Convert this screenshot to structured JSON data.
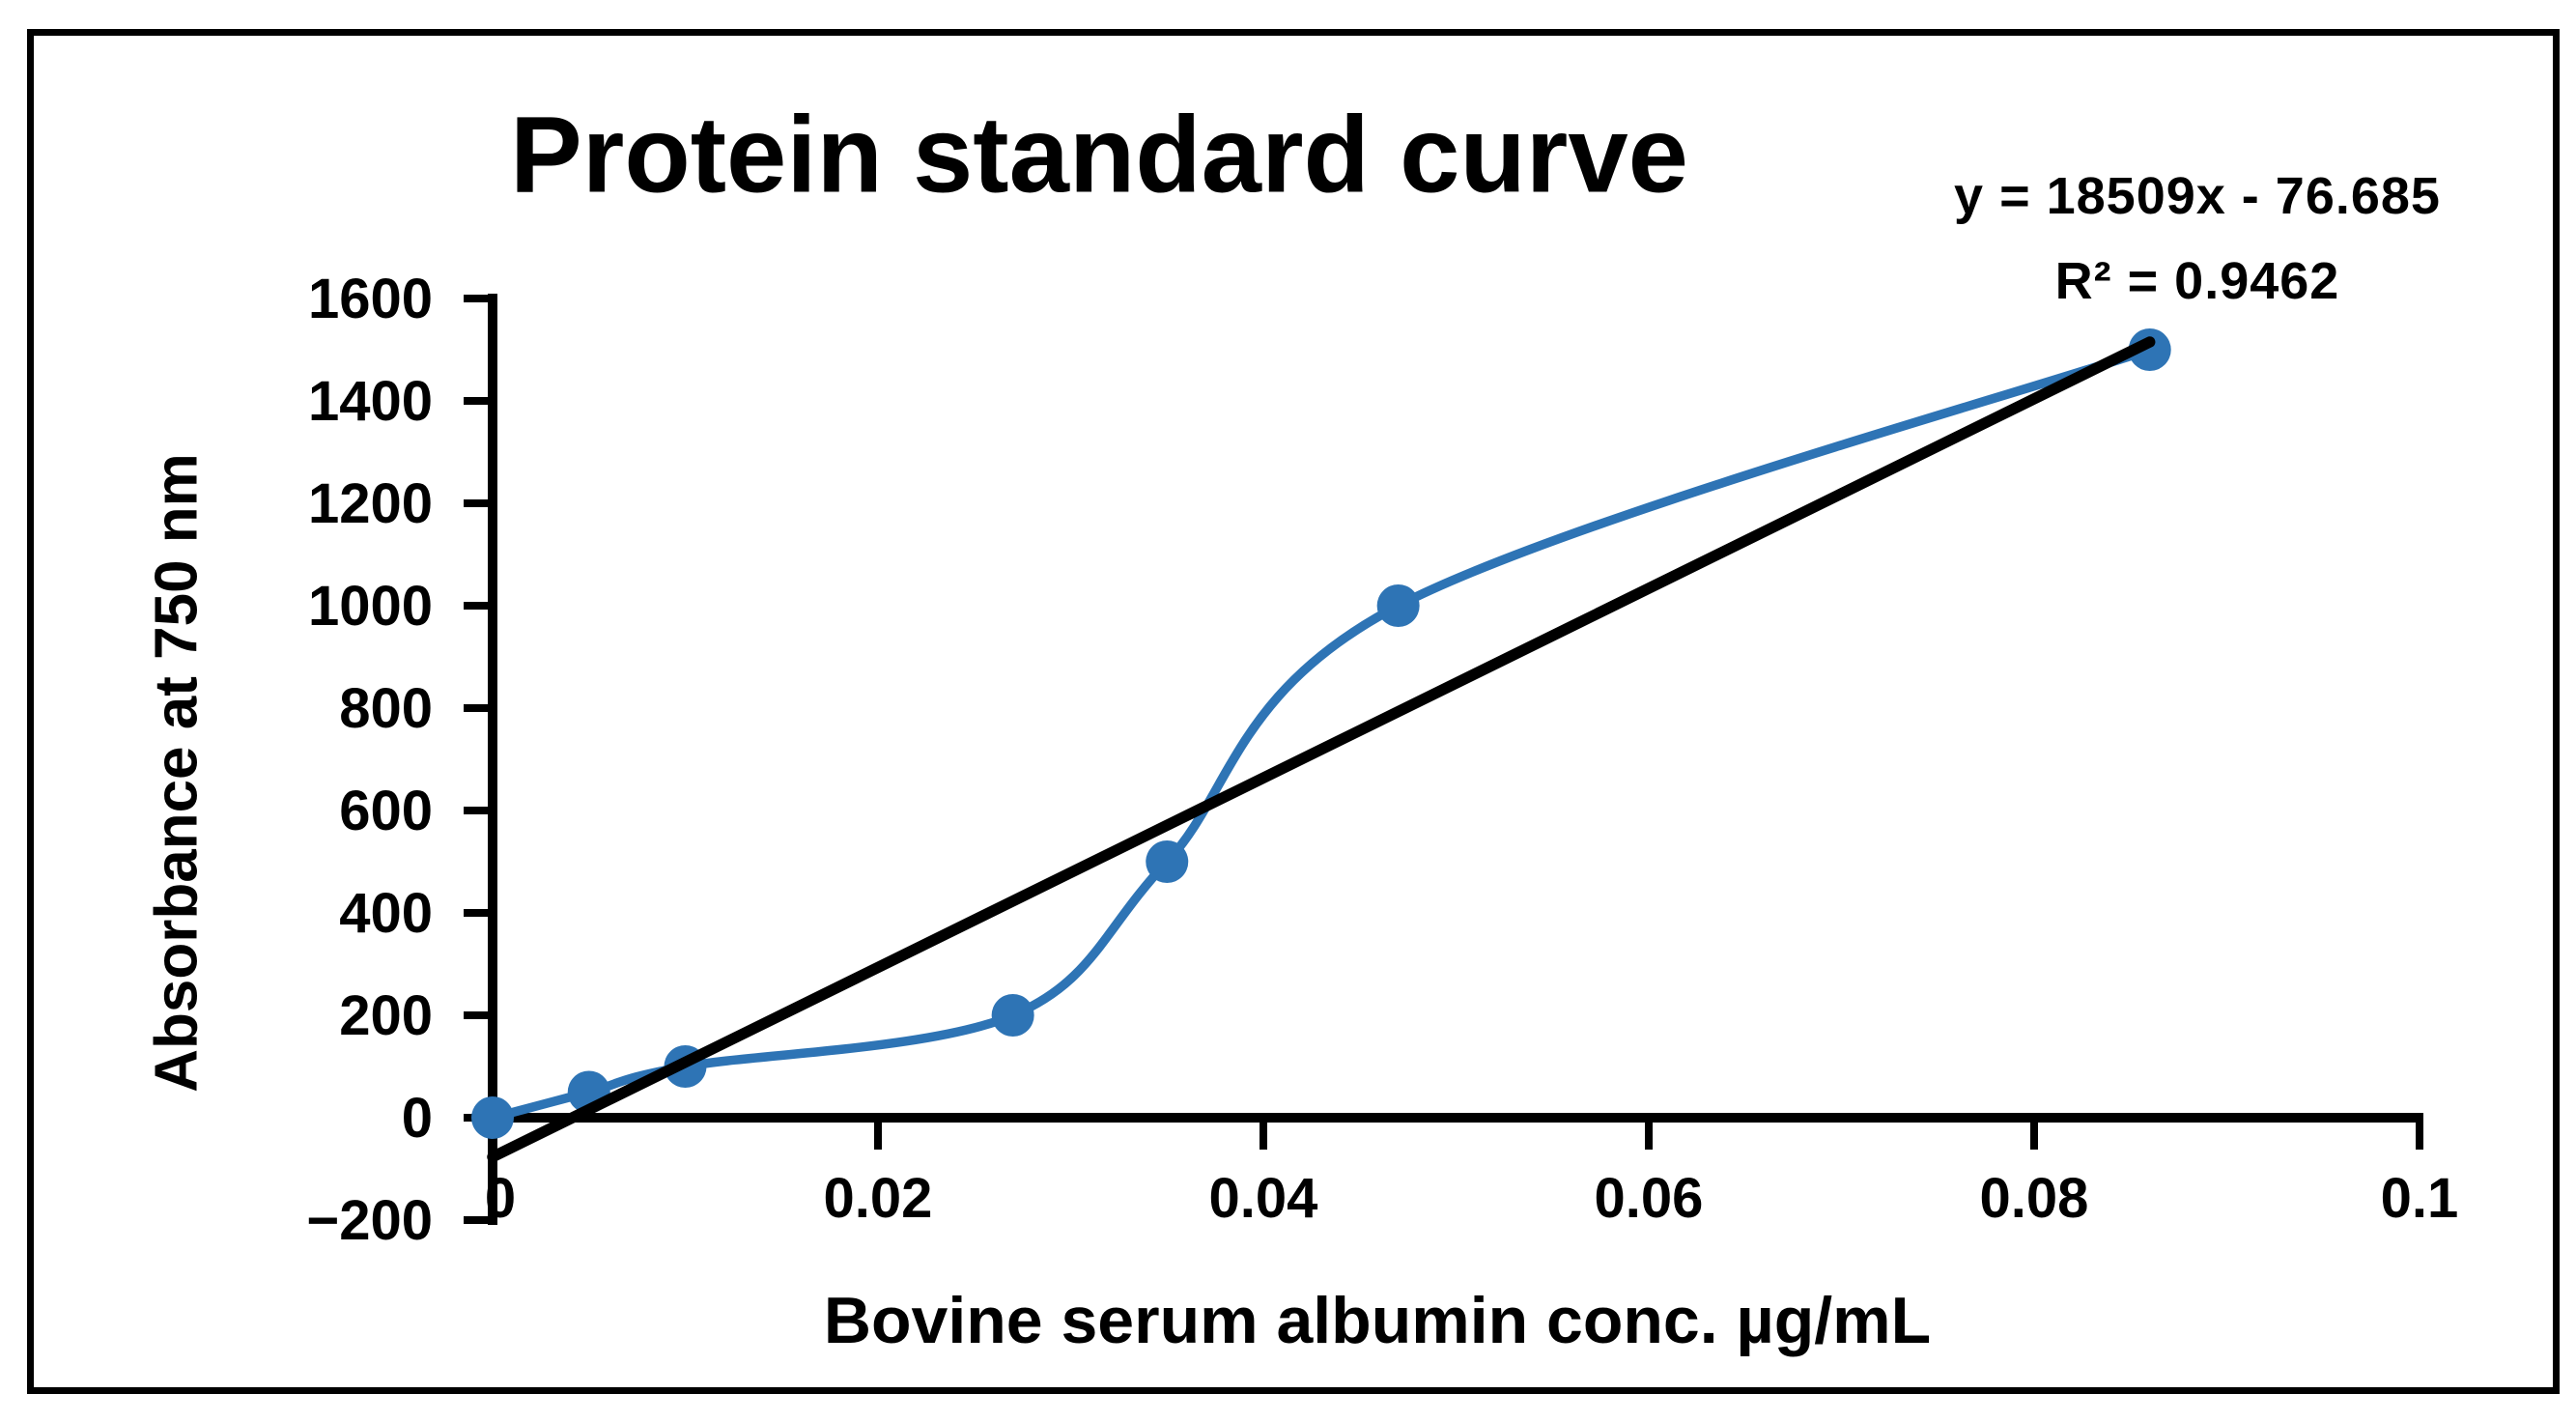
{
  "chart_data": {
    "type": "scatter",
    "title": "Protein standard curve",
    "xlabel": "Bovine serum albumin conc. µg/mL",
    "ylabel": "Absorbance at 750 nm",
    "annotations": [
      "y = 18509x - 76.685",
      "R² = 0.9462"
    ],
    "x": [
      0,
      0.005,
      0.01,
      0.027,
      0.035,
      0.047,
      0.086
    ],
    "y": [
      0,
      50,
      100,
      200,
      500,
      1000,
      1500
    ],
    "line_style": "smooth",
    "marker": "circle",
    "series_color": "#2e74b5",
    "trendline": {
      "type": "linear",
      "slope": 18509,
      "intercept": -76.685,
      "x_start": 0,
      "x_end": 0.086,
      "color": "#000000"
    },
    "x_ticks": {
      "values": [
        0,
        0.02,
        0.04,
        0.06,
        0.08,
        0.1
      ],
      "labels": [
        "0",
        "0.02",
        "0.04",
        "0.06",
        "0.08",
        "0.1"
      ]
    },
    "y_ticks": {
      "values": [
        -200,
        0,
        200,
        400,
        600,
        800,
        1000,
        1200,
        1400,
        1600
      ],
      "labels": [
        "−200",
        "0",
        "200",
        "400",
        "600",
        "800",
        "1000",
        "1200",
        "1400",
        "1600"
      ]
    },
    "xlim": [
      0,
      0.1
    ],
    "ylim": [
      -200,
      1600
    ],
    "grid": false,
    "legend": false,
    "axis_color": "#000000",
    "text_color": "#000000"
  }
}
